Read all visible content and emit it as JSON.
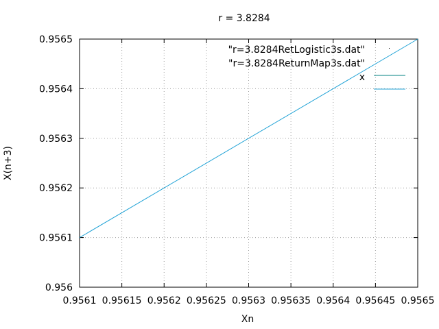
{
  "chart_data": {
    "type": "line",
    "title": "r = 3.8284",
    "xlabel": "Xn",
    "ylabel": "X(n+3)",
    "xlim": [
      0.9561,
      0.9565
    ],
    "ylim": [
      0.956,
      0.9565
    ],
    "x_ticks": [
      "0.9561",
      "0.95615",
      "0.9562",
      "0.95625",
      "0.9563",
      "0.95635",
      "0.9564",
      "0.95645",
      "0.9565"
    ],
    "y_ticks": [
      "0.956",
      "0.9561",
      "0.9562",
      "0.9563",
      "0.9564",
      "0.9565"
    ],
    "grid": true,
    "legend_position": "top-right",
    "series": [
      {
        "name": "\"r=3.8284RetLogistic3s.dat\"",
        "style": "points",
        "color": "#000000",
        "x": [],
        "y": []
      },
      {
        "name": "\"r=3.8284ReturnMap3s.dat\"",
        "style": "line",
        "color": "#008080",
        "x": [],
        "y": []
      },
      {
        "name": "x",
        "style": "line",
        "color": "#1fa2d6",
        "x": [
          0.9561,
          0.9565
        ],
        "y": [
          0.9561,
          0.9565
        ]
      }
    ]
  }
}
